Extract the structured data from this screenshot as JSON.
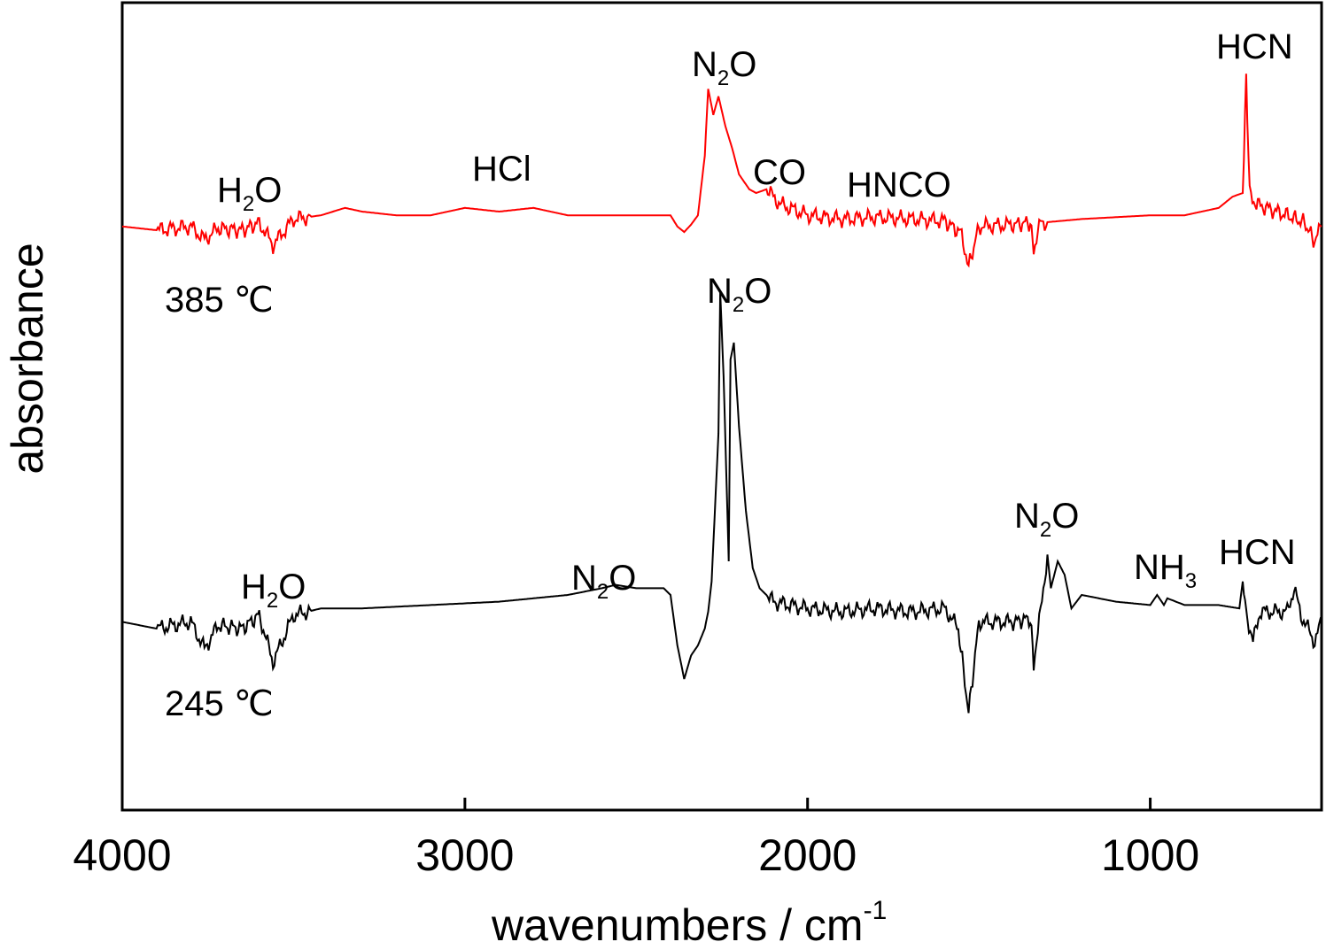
{
  "chart_data": {
    "type": "line",
    "xlabel_main": "wavenumbers / cm",
    "xlabel_sup": "-1",
    "ylabel": "absorbance",
    "xlim": [
      4000,
      500
    ],
    "x_reversed": true,
    "y_ticks_shown": false,
    "grid": false,
    "xticks": [
      "4000",
      "3000",
      "2000",
      "1000"
    ],
    "colors": {
      "upper_trace": "#ff0000",
      "lower_trace": "#000000",
      "temperature_labels": "#0000cc"
    },
    "series": [
      {
        "temperature": "385 ℃",
        "annotations": [
          {
            "main": "H",
            "sub": "2",
            "tail": "O"
          },
          {
            "main": "HCl",
            "sub": "",
            "tail": ""
          },
          {
            "main": "N",
            "sub": "2",
            "tail": "O"
          },
          {
            "main": "CO",
            "sub": "",
            "tail": ""
          },
          {
            "main": "HNCO",
            "sub": "",
            "tail": ""
          },
          {
            "main": "HCN",
            "sub": "",
            "tail": ""
          }
        ],
        "points": [
          [
            4000,
            0.02
          ],
          [
            3900,
            0.0
          ],
          [
            3800,
            0.02
          ],
          [
            3760,
            -0.05
          ],
          [
            3720,
            0.01
          ],
          [
            3650,
            0.0
          ],
          [
            3600,
            0.04
          ],
          [
            3560,
            -0.08
          ],
          [
            3500,
            0.06
          ],
          [
            3420,
            0.08
          ],
          [
            3350,
            0.12
          ],
          [
            3300,
            0.1
          ],
          [
            3200,
            0.08
          ],
          [
            3100,
            0.08
          ],
          [
            3000,
            0.12
          ],
          [
            2900,
            0.1
          ],
          [
            2800,
            0.12
          ],
          [
            2700,
            0.08
          ],
          [
            2600,
            0.08
          ],
          [
            2500,
            0.08
          ],
          [
            2400,
            0.08
          ],
          [
            2380,
            0.02
          ],
          [
            2360,
            -0.01
          ],
          [
            2340,
            0.03
          ],
          [
            2320,
            0.08
          ],
          [
            2300,
            0.4
          ],
          [
            2290,
            0.76
          ],
          [
            2275,
            0.62
          ],
          [
            2260,
            0.72
          ],
          [
            2240,
            0.56
          ],
          [
            2220,
            0.44
          ],
          [
            2200,
            0.3
          ],
          [
            2170,
            0.22
          ],
          [
            2150,
            0.2
          ],
          [
            2120,
            0.22
          ],
          [
            2080,
            0.14
          ],
          [
            2000,
            0.08
          ],
          [
            1900,
            0.06
          ],
          [
            1800,
            0.07
          ],
          [
            1700,
            0.06
          ],
          [
            1600,
            0.05
          ],
          [
            1550,
            -0.02
          ],
          [
            1530,
            -0.2
          ],
          [
            1500,
            0.02
          ],
          [
            1400,
            0.03
          ],
          [
            1350,
            0.04
          ],
          [
            1340,
            -0.1
          ],
          [
            1320,
            0.04
          ],
          [
            1200,
            0.06
          ],
          [
            1000,
            0.08
          ],
          [
            900,
            0.08
          ],
          [
            800,
            0.12
          ],
          [
            760,
            0.18
          ],
          [
            730,
            0.2
          ],
          [
            720,
            0.82
          ],
          [
            710,
            0.2
          ],
          [
            690,
            0.14
          ],
          [
            600,
            0.08
          ],
          [
            550,
            0.04
          ],
          [
            520,
            -0.06
          ],
          [
            500,
            0.02
          ]
        ]
      },
      {
        "temperature": "245 ℃",
        "annotations": [
          {
            "main": "H",
            "sub": "2",
            "tail": "O"
          },
          {
            "main": "N",
            "sub": "2",
            "tail": "O"
          },
          {
            "main": "N",
            "sub": "2",
            "tail": "O"
          },
          {
            "main": "N",
            "sub": "2",
            "tail": "O"
          },
          {
            "main": "NH",
            "sub": "3",
            "tail": ""
          },
          {
            "main": "HCN",
            "sub": "",
            "tail": ""
          }
        ],
        "points": [
          [
            4000,
            0.02
          ],
          [
            3900,
            0.0
          ],
          [
            3800,
            0.02
          ],
          [
            3760,
            -0.06
          ],
          [
            3720,
            0.01
          ],
          [
            3650,
            0.0
          ],
          [
            3600,
            0.04
          ],
          [
            3560,
            -0.1
          ],
          [
            3500,
            0.04
          ],
          [
            3420,
            0.06
          ],
          [
            3300,
            0.06
          ],
          [
            3100,
            0.07
          ],
          [
            2900,
            0.08
          ],
          [
            2700,
            0.1
          ],
          [
            2600,
            0.12
          ],
          [
            2560,
            0.13
          ],
          [
            2500,
            0.12
          ],
          [
            2420,
            0.12
          ],
          [
            2400,
            0.1
          ],
          [
            2380,
            -0.05
          ],
          [
            2360,
            -0.15
          ],
          [
            2340,
            -0.08
          ],
          [
            2320,
            -0.05
          ],
          [
            2300,
            0.0
          ],
          [
            2290,
            0.05
          ],
          [
            2280,
            0.14
          ],
          [
            2260,
            0.58
          ],
          [
            2255,
            1.0
          ],
          [
            2245,
            0.75
          ],
          [
            2230,
            0.2
          ],
          [
            2225,
            0.8
          ],
          [
            2215,
            0.85
          ],
          [
            2200,
            0.6
          ],
          [
            2180,
            0.35
          ],
          [
            2160,
            0.18
          ],
          [
            2140,
            0.12
          ],
          [
            2100,
            0.08
          ],
          [
            2000,
            0.06
          ],
          [
            1900,
            0.05
          ],
          [
            1800,
            0.06
          ],
          [
            1700,
            0.05
          ],
          [
            1600,
            0.06
          ],
          [
            1560,
            0.0
          ],
          [
            1530,
            -0.25
          ],
          [
            1500,
            0.02
          ],
          [
            1400,
            0.02
          ],
          [
            1350,
            0.03
          ],
          [
            1340,
            -0.1
          ],
          [
            1320,
            0.05
          ],
          [
            1300,
            0.22
          ],
          [
            1290,
            0.12
          ],
          [
            1270,
            0.2
          ],
          [
            1250,
            0.16
          ],
          [
            1230,
            0.06
          ],
          [
            1200,
            0.1
          ],
          [
            1100,
            0.08
          ],
          [
            1000,
            0.07
          ],
          [
            980,
            0.1
          ],
          [
            960,
            0.07
          ],
          [
            950,
            0.09
          ],
          [
            900,
            0.07
          ],
          [
            800,
            0.07
          ],
          [
            740,
            0.06
          ],
          [
            730,
            0.14
          ],
          [
            720,
            0.05
          ],
          [
            700,
            -0.04
          ],
          [
            680,
            0.05
          ],
          [
            600,
            0.05
          ],
          [
            580,
            0.12
          ],
          [
            560,
            0.04
          ],
          [
            520,
            -0.04
          ],
          [
            500,
            0.02
          ]
        ]
      }
    ]
  }
}
